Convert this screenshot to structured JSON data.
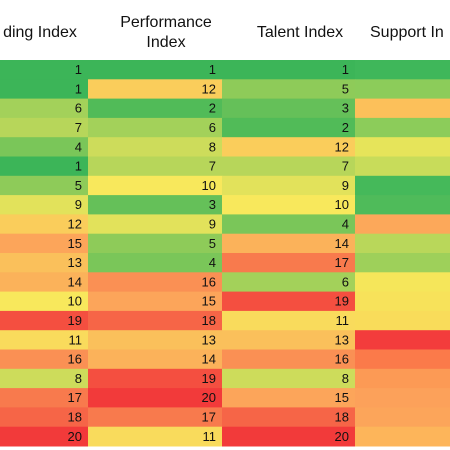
{
  "table": {
    "columns": [
      "ding Index",
      "Performance\nIndex",
      "Talent Index",
      "Support In"
    ],
    "rows": [
      [
        1,
        1,
        1
      ],
      [
        1,
        12,
        5
      ],
      [
        6,
        2,
        3
      ],
      [
        7,
        6,
        2
      ],
      [
        4,
        8,
        12
      ],
      [
        1,
        7,
        7
      ],
      [
        5,
        10,
        9
      ],
      [
        9,
        3,
        10
      ],
      [
        12,
        9,
        4
      ],
      [
        15,
        5,
        14
      ],
      [
        13,
        4,
        17
      ],
      [
        14,
        16,
        6
      ],
      [
        10,
        15,
        19
      ],
      [
        19,
        18,
        11
      ],
      [
        11,
        13,
        13
      ],
      [
        16,
        14,
        16
      ],
      [
        8,
        19,
        8
      ],
      [
        17,
        20,
        15
      ],
      [
        18,
        17,
        18
      ],
      [
        20,
        11,
        20
      ]
    ],
    "support_colors": [
      "#3fb75a",
      "#8ccc5a",
      "#fcc05a",
      "#8ccc5a",
      "#e6e45a",
      "#c8dc5a",
      "#45b95a",
      "#4fbb5a",
      "#fca85a",
      "#b9d75a",
      "#9ed05a",
      "#f5e65a",
      "#f7e25a",
      "#f9dc5a",
      "#f33c3c",
      "#fb7a4a",
      "#fc9a55",
      "#fca15a",
      "#fca55a",
      "#fdb55a"
    ]
  }
}
